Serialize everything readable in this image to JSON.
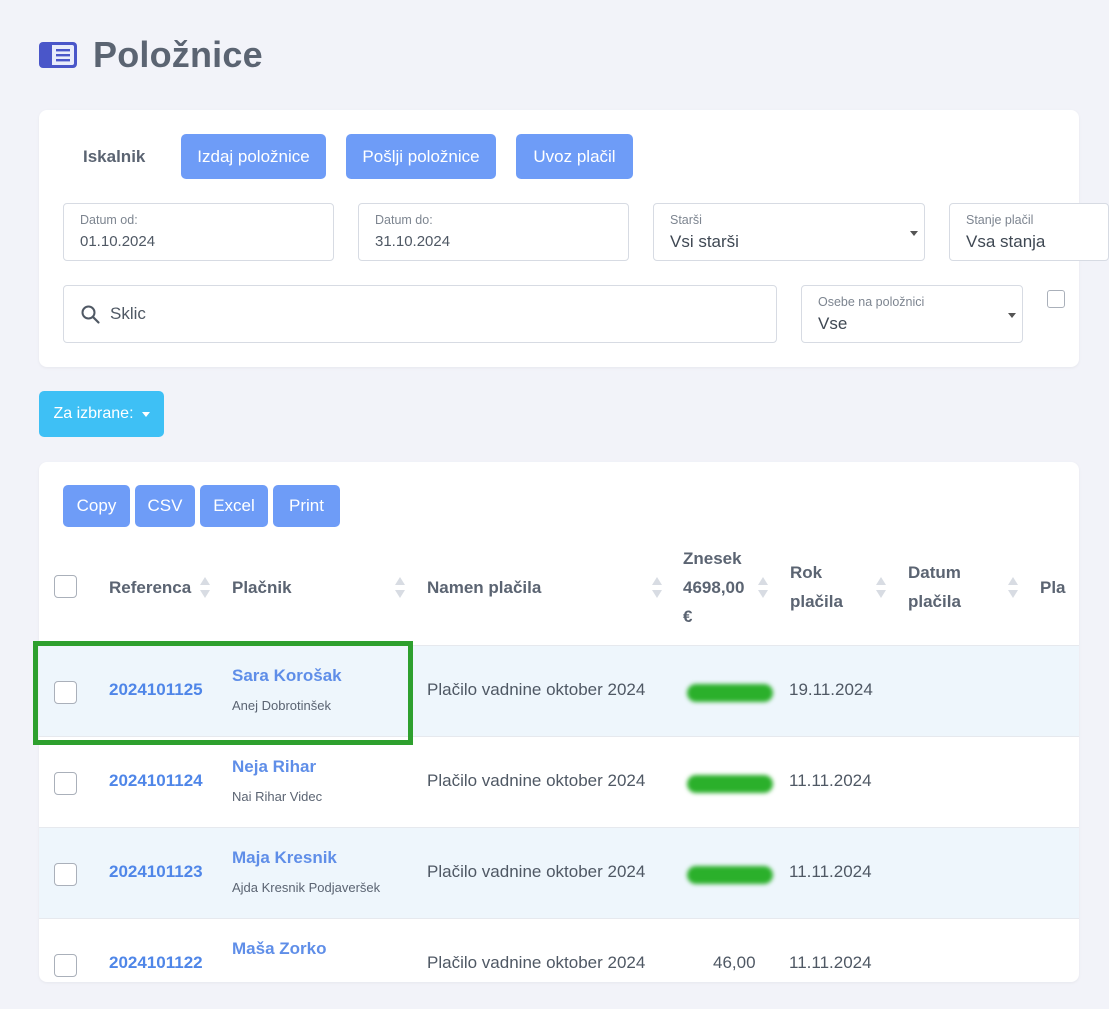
{
  "page": {
    "title": "Položnice",
    "title_icon": "list-card-icon"
  },
  "toolbar": {
    "search_tab": "Iskalnik",
    "issue_label": "Izdaj položnice",
    "send_label": "Pošlji položnice",
    "import_label": "Uvoz plačil"
  },
  "filters": {
    "date_from": {
      "label": "Datum od:",
      "value": "01.10.2024"
    },
    "date_to": {
      "label": "Datum do:",
      "value": "31.10.2024"
    },
    "parents": {
      "label": "Starši",
      "value": "Vsi starši"
    },
    "payment_state": {
      "label": "Stanje plačil",
      "value": "Vsa stanja"
    },
    "search": {
      "placeholder": "Sklic"
    },
    "persons": {
      "label": "Osebe na položnici",
      "value": "Vse"
    }
  },
  "bulk": {
    "label": "Za izbrane:"
  },
  "export": {
    "copy": "Copy",
    "csv": "CSV",
    "excel": "Excel",
    "print": "Print"
  },
  "table": {
    "headers": {
      "reference": "Referenca",
      "payer": "Plačnik",
      "purpose": "Namen plačila",
      "amount_line1": "Znesek",
      "amount_line2": "4698,00",
      "amount_line3": "€",
      "due_line1": "Rok",
      "due_line2": "plačila",
      "paid_line1": "Datum",
      "paid_line2": "plačila",
      "next": "Pla"
    },
    "rows": [
      {
        "ref": "2024101125",
        "payer": "Sara Korošak",
        "person": "Anej Dobrotinšek",
        "purpose": "Plačilo vadnine oktober 2024",
        "amount": "",
        "due": "19.11.2024"
      },
      {
        "ref": "2024101124",
        "payer": "Neja Rihar",
        "person": "Nai Rihar Videc",
        "purpose": "Plačilo vadnine oktober 2024",
        "amount": "",
        "due": "11.11.2024"
      },
      {
        "ref": "2024101123",
        "payer": "Maja Kresnik",
        "person": "Ajda Kresnik Podjaveršek",
        "purpose": "Plačilo vadnine oktober 2024",
        "amount": "",
        "due": "11.11.2024"
      },
      {
        "ref": "2024101122",
        "payer": "Maša Zorko",
        "person": "",
        "purpose": "Plačilo vadnine oktober 2024",
        "amount": "46,00",
        "due": "11.11.2024"
      }
    ]
  },
  "colors": {
    "accent_blue": "#6e9cf7",
    "bulk_button": "#3ec0f5",
    "highlight": "#2ea02e",
    "row_alt": "#eef6fc"
  }
}
